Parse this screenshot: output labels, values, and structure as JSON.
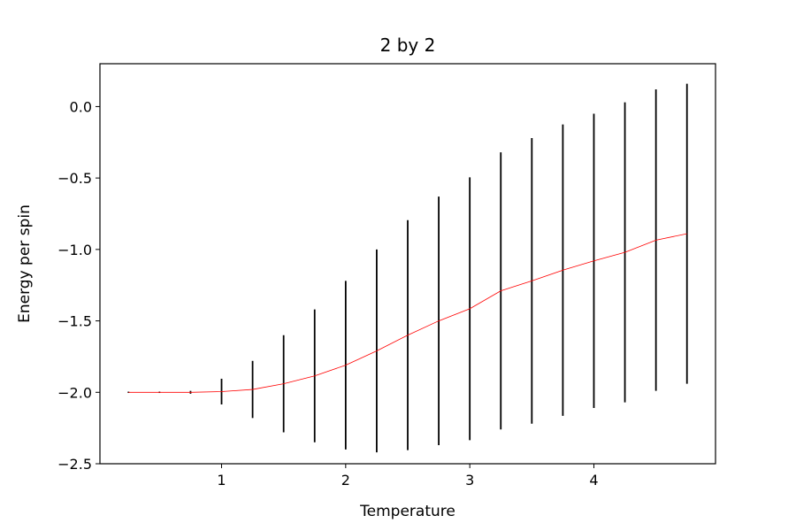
{
  "chart_data": {
    "type": "line",
    "title": "2 by 2",
    "xlabel": "Temperature",
    "ylabel": "Energy per spin",
    "xlim": [
      0.02,
      4.98
    ],
    "ylim": [
      -2.5,
      0.3
    ],
    "xticks": [
      1,
      2,
      3,
      4
    ],
    "xtick_labels": [
      "1",
      "2",
      "3",
      "4"
    ],
    "yticks": [
      0.0,
      -0.5,
      -1.0,
      -1.5,
      -2.0,
      -2.5
    ],
    "ytick_labels": [
      "0.0",
      "−0.5",
      "−1.0",
      "−1.5",
      "−2.0",
      "−2.5"
    ],
    "grid": false,
    "series": [
      {
        "color": "#ff0000",
        "error_bar_color": "#000000",
        "x": [
          0.25,
          0.5,
          0.75,
          1.0,
          1.25,
          1.5,
          1.75,
          2.0,
          2.25,
          2.5,
          2.75,
          3.0,
          3.25,
          3.5,
          3.75,
          4.0,
          4.25,
          4.5,
          4.75
        ],
        "y": [
          -2.0,
          -2.0,
          -2.0,
          -1.995,
          -1.98,
          -1.94,
          -1.885,
          -1.81,
          -1.71,
          -1.6,
          -1.5,
          -1.415,
          -1.29,
          -1.22,
          -1.145,
          -1.08,
          -1.02,
          -0.935,
          -0.89
        ],
        "yerr": [
          0.0,
          0.0,
          0.01,
          0.09,
          0.2,
          0.34,
          0.465,
          0.59,
          0.71,
          0.805,
          0.87,
          0.92,
          0.97,
          1.0,
          1.02,
          1.03,
          1.05,
          1.055,
          1.05
        ]
      }
    ]
  }
}
